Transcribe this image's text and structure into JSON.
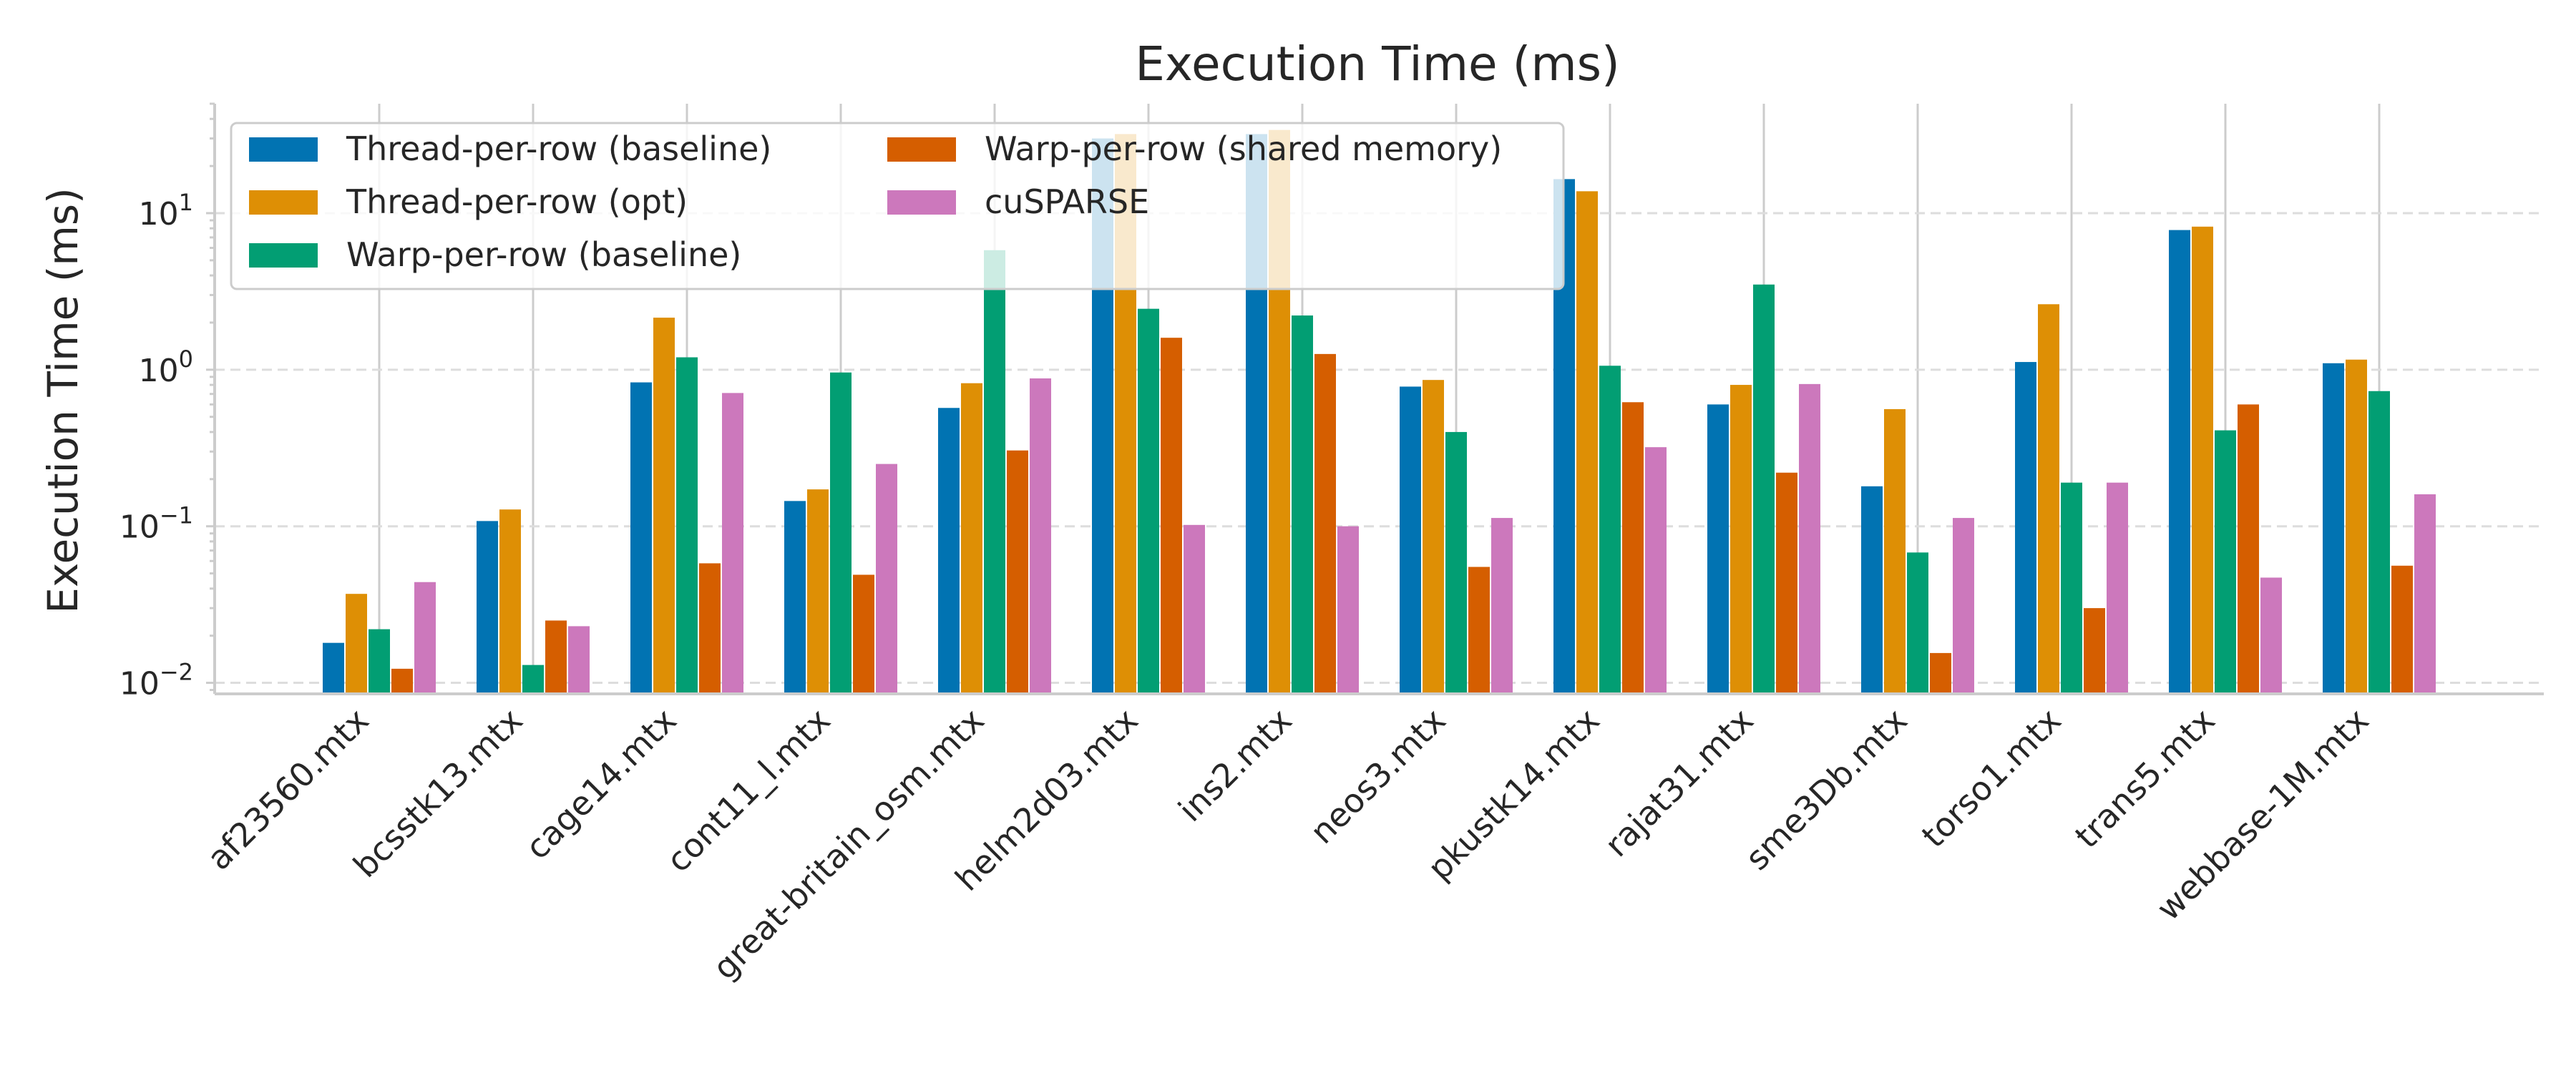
{
  "chart_data": {
    "type": "bar",
    "title": "Execution Time (ms)",
    "xlabel": "",
    "ylabel": "Execution Time (ms)",
    "yscale": "log",
    "ylim": [
      0.0085,
      50
    ],
    "yticks": [
      {
        "value": 0.01,
        "base": "10",
        "exp": "−2"
      },
      {
        "value": 0.1,
        "base": "10",
        "exp": "−1"
      },
      {
        "value": 1,
        "base": "10",
        "exp": "0"
      },
      {
        "value": 10,
        "base": "10",
        "exp": "1"
      }
    ],
    "grid": "horizontal dashed",
    "legend_position": "top-left",
    "categories": [
      "af23560.mtx",
      "bcsstk13.mtx",
      "cage14.mtx",
      "cont11_l.mtx",
      "great-britain_osm.mtx",
      "helm2d03.mtx",
      "ins2.mtx",
      "neos3.mtx",
      "pkustk14.mtx",
      "rajat31.mtx",
      "sme3Db.mtx",
      "torso1.mtx",
      "trans5.mtx",
      "webbase-1M.mtx"
    ],
    "series": [
      {
        "name": "Thread-per-row (baseline)",
        "color": "#0173b2",
        "values": [
          0.018,
          0.108,
          0.83,
          0.145,
          0.57,
          30,
          32,
          0.78,
          16.5,
          0.6,
          0.18,
          1.12,
          7.8,
          1.1
        ]
      },
      {
        "name": "Thread-per-row (opt)",
        "color": "#de8f05",
        "values": [
          0.037,
          0.128,
          2.15,
          0.172,
          0.82,
          32,
          34,
          0.86,
          13.8,
          0.8,
          0.56,
          2.62,
          8.2,
          1.16
        ]
      },
      {
        "name": "Warp-per-row (baseline)",
        "color": "#029e73",
        "values": [
          0.022,
          0.013,
          1.2,
          0.96,
          5.8,
          2.45,
          2.22,
          0.4,
          1.06,
          3.5,
          0.068,
          0.19,
          0.41,
          0.73
        ]
      },
      {
        "name": "Warp-per-row (shared memory)",
        "color": "#d55e00",
        "values": [
          0.0123,
          0.025,
          0.058,
          0.049,
          0.305,
          1.6,
          1.26,
          0.055,
          0.62,
          0.22,
          0.0155,
          0.03,
          0.6,
          0.056
        ]
      },
      {
        "name": "cuSPARSE",
        "color": "#cc78bc",
        "values": [
          0.044,
          0.023,
          0.71,
          0.25,
          0.88,
          0.102,
          0.1,
          0.113,
          0.32,
          0.81,
          0.113,
          0.19,
          0.047,
          0.16
        ]
      }
    ]
  }
}
